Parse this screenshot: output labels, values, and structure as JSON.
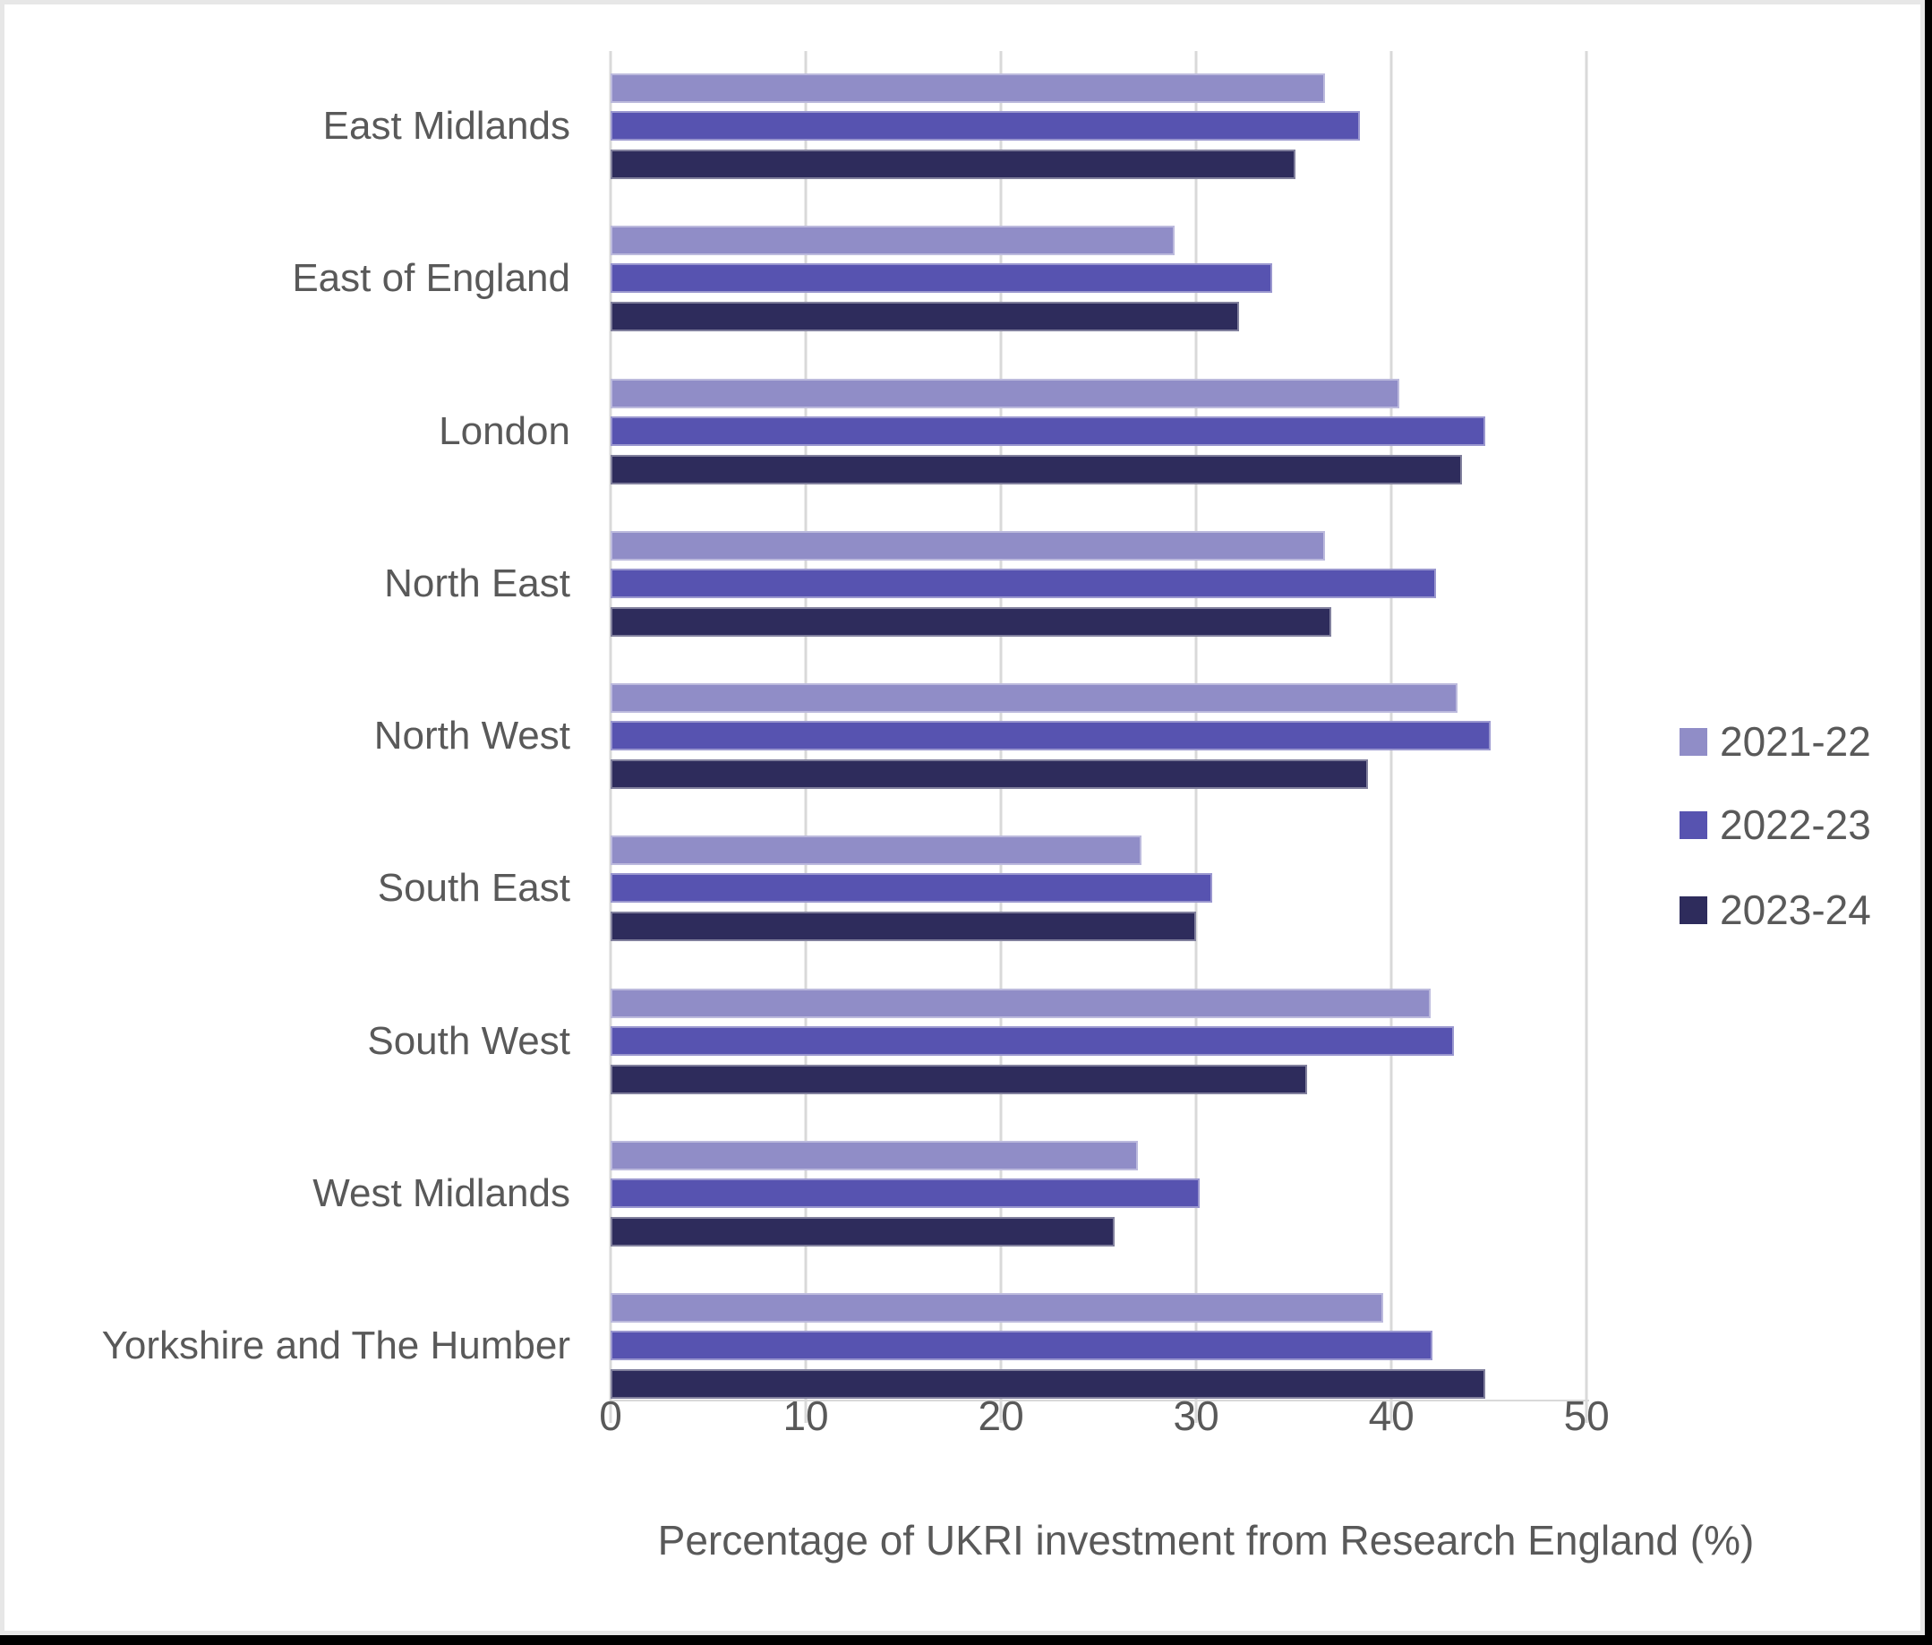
{
  "chart_data": {
    "type": "bar",
    "orientation": "horizontal",
    "xlabel": "Percentage of UKRI investment from Research England (%)",
    "ylabel": "",
    "title": "",
    "categories": [
      "East Midlands",
      "East of England",
      "London",
      "North East",
      "North West",
      "South East",
      "South West",
      "West Midlands",
      "Yorkshire and The Humber"
    ],
    "series": [
      {
        "name": "2021-22",
        "color": "#908DC7",
        "values": [
          36.6,
          28.9,
          40.4,
          36.6,
          43.4,
          27.2,
          42.0,
          27.0,
          39.6
        ]
      },
      {
        "name": "2022-23",
        "color": "#5753B0",
        "values": [
          38.4,
          33.9,
          44.8,
          42.3,
          45.1,
          30.8,
          43.2,
          30.2,
          42.1
        ]
      },
      {
        "name": "2023-24",
        "color": "#2E2C5C",
        "values": [
          35.1,
          32.2,
          43.6,
          36.9,
          38.8,
          30.0,
          35.7,
          25.8,
          44.8
        ]
      }
    ],
    "x_ticks": [
      0,
      10,
      20,
      30,
      40,
      50
    ],
    "xlim": [
      0,
      51
    ],
    "grid": true,
    "legend_position": "right",
    "colors": {
      "gridline": "#D9D9D9",
      "axis_text": "#595959",
      "frame_border": "#E7E7E7",
      "outer_edge": "#000000",
      "background": "#FFFFFF"
    }
  }
}
